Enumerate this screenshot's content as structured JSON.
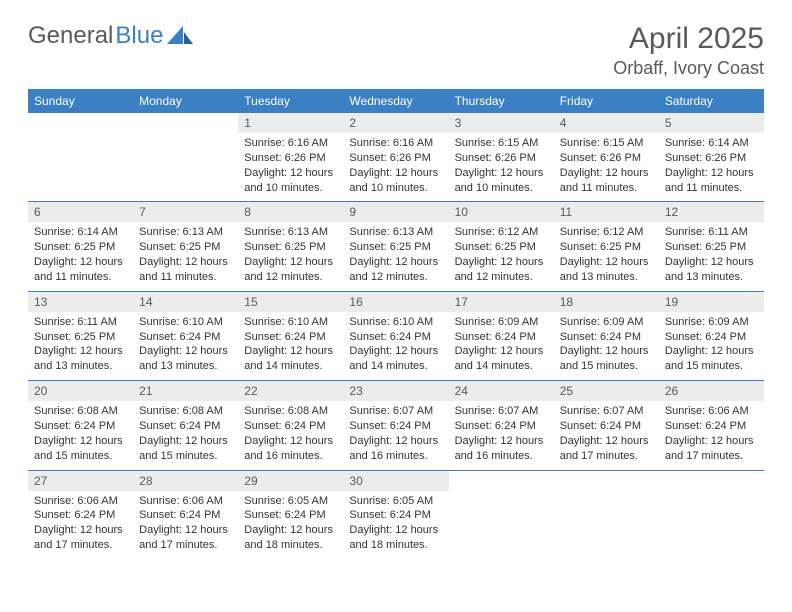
{
  "brand": {
    "part1": "General",
    "part2": "Blue"
  },
  "title": "April 2025",
  "location": "Orbaff, Ivory Coast",
  "colors": {
    "accent": "#3b7fc4",
    "grey_bg": "#ececec",
    "text_muted": "#5a5a5a"
  },
  "dow": [
    "Sunday",
    "Monday",
    "Tuesday",
    "Wednesday",
    "Thursday",
    "Friday",
    "Saturday"
  ],
  "label": {
    "sunrise": "Sunrise:",
    "sunset": "Sunset:",
    "daylight1": "Daylight:",
    "daylight_hours": "hours",
    "daylight_and": "and",
    "daylight_minutes": "minutes."
  },
  "weeks": [
    [
      {
        "n": "",
        "empty": true
      },
      {
        "n": "",
        "empty": true
      },
      {
        "n": "1",
        "sr": "6:16 AM",
        "ss": "6:26 PM",
        "dh": 12,
        "dm": 10
      },
      {
        "n": "2",
        "sr": "6:16 AM",
        "ss": "6:26 PM",
        "dh": 12,
        "dm": 10
      },
      {
        "n": "3",
        "sr": "6:15 AM",
        "ss": "6:26 PM",
        "dh": 12,
        "dm": 10
      },
      {
        "n": "4",
        "sr": "6:15 AM",
        "ss": "6:26 PM",
        "dh": 12,
        "dm": 11
      },
      {
        "n": "5",
        "sr": "6:14 AM",
        "ss": "6:26 PM",
        "dh": 12,
        "dm": 11
      }
    ],
    [
      {
        "n": "6",
        "sr": "6:14 AM",
        "ss": "6:25 PM",
        "dh": 12,
        "dm": 11
      },
      {
        "n": "7",
        "sr": "6:13 AM",
        "ss": "6:25 PM",
        "dh": 12,
        "dm": 11
      },
      {
        "n": "8",
        "sr": "6:13 AM",
        "ss": "6:25 PM",
        "dh": 12,
        "dm": 12
      },
      {
        "n": "9",
        "sr": "6:13 AM",
        "ss": "6:25 PM",
        "dh": 12,
        "dm": 12
      },
      {
        "n": "10",
        "sr": "6:12 AM",
        "ss": "6:25 PM",
        "dh": 12,
        "dm": 12
      },
      {
        "n": "11",
        "sr": "6:12 AM",
        "ss": "6:25 PM",
        "dh": 12,
        "dm": 13
      },
      {
        "n": "12",
        "sr": "6:11 AM",
        "ss": "6:25 PM",
        "dh": 12,
        "dm": 13
      }
    ],
    [
      {
        "n": "13",
        "sr": "6:11 AM",
        "ss": "6:25 PM",
        "dh": 12,
        "dm": 13
      },
      {
        "n": "14",
        "sr": "6:10 AM",
        "ss": "6:24 PM",
        "dh": 12,
        "dm": 13
      },
      {
        "n": "15",
        "sr": "6:10 AM",
        "ss": "6:24 PM",
        "dh": 12,
        "dm": 14
      },
      {
        "n": "16",
        "sr": "6:10 AM",
        "ss": "6:24 PM",
        "dh": 12,
        "dm": 14
      },
      {
        "n": "17",
        "sr": "6:09 AM",
        "ss": "6:24 PM",
        "dh": 12,
        "dm": 14
      },
      {
        "n": "18",
        "sr": "6:09 AM",
        "ss": "6:24 PM",
        "dh": 12,
        "dm": 15
      },
      {
        "n": "19",
        "sr": "6:09 AM",
        "ss": "6:24 PM",
        "dh": 12,
        "dm": 15
      }
    ],
    [
      {
        "n": "20",
        "sr": "6:08 AM",
        "ss": "6:24 PM",
        "dh": 12,
        "dm": 15
      },
      {
        "n": "21",
        "sr": "6:08 AM",
        "ss": "6:24 PM",
        "dh": 12,
        "dm": 15
      },
      {
        "n": "22",
        "sr": "6:08 AM",
        "ss": "6:24 PM",
        "dh": 12,
        "dm": 16
      },
      {
        "n": "23",
        "sr": "6:07 AM",
        "ss": "6:24 PM",
        "dh": 12,
        "dm": 16
      },
      {
        "n": "24",
        "sr": "6:07 AM",
        "ss": "6:24 PM",
        "dh": 12,
        "dm": 16
      },
      {
        "n": "25",
        "sr": "6:07 AM",
        "ss": "6:24 PM",
        "dh": 12,
        "dm": 17
      },
      {
        "n": "26",
        "sr": "6:06 AM",
        "ss": "6:24 PM",
        "dh": 12,
        "dm": 17
      }
    ],
    [
      {
        "n": "27",
        "sr": "6:06 AM",
        "ss": "6:24 PM",
        "dh": 12,
        "dm": 17
      },
      {
        "n": "28",
        "sr": "6:06 AM",
        "ss": "6:24 PM",
        "dh": 12,
        "dm": 17
      },
      {
        "n": "29",
        "sr": "6:05 AM",
        "ss": "6:24 PM",
        "dh": 12,
        "dm": 18
      },
      {
        "n": "30",
        "sr": "6:05 AM",
        "ss": "6:24 PM",
        "dh": 12,
        "dm": 18
      },
      {
        "n": "",
        "empty": true
      },
      {
        "n": "",
        "empty": true
      },
      {
        "n": "",
        "empty": true
      }
    ]
  ]
}
